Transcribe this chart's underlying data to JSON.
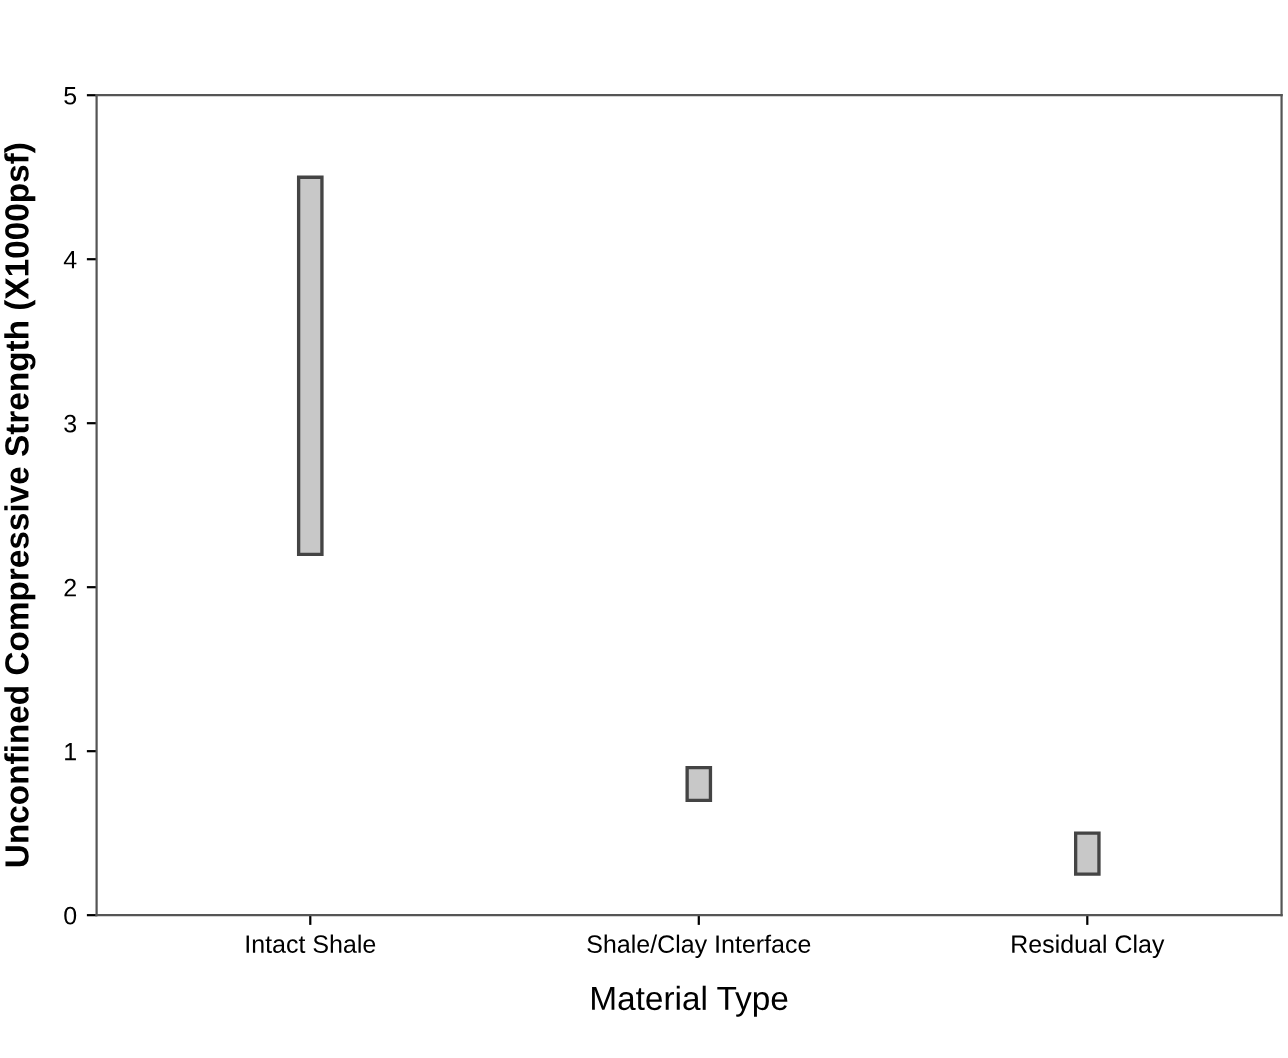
{
  "chart_data": {
    "type": "bar",
    "xlabel": "Material Type",
    "ylabel": "Unconfined Compressive Strength (X1000psf)",
    "categories": [
      "Intact Shale",
      "Shale/Clay Interface",
      "Residual Clay"
    ],
    "base": [
      2.2,
      0.7,
      0.25
    ],
    "values": [
      2.3,
      0.2,
      0.25
    ],
    "color": "#c8c8c8",
    "ylim": [
      0,
      5
    ],
    "yticks": [
      0,
      1,
      2,
      3,
      4,
      5
    ],
    "grid": false
  }
}
